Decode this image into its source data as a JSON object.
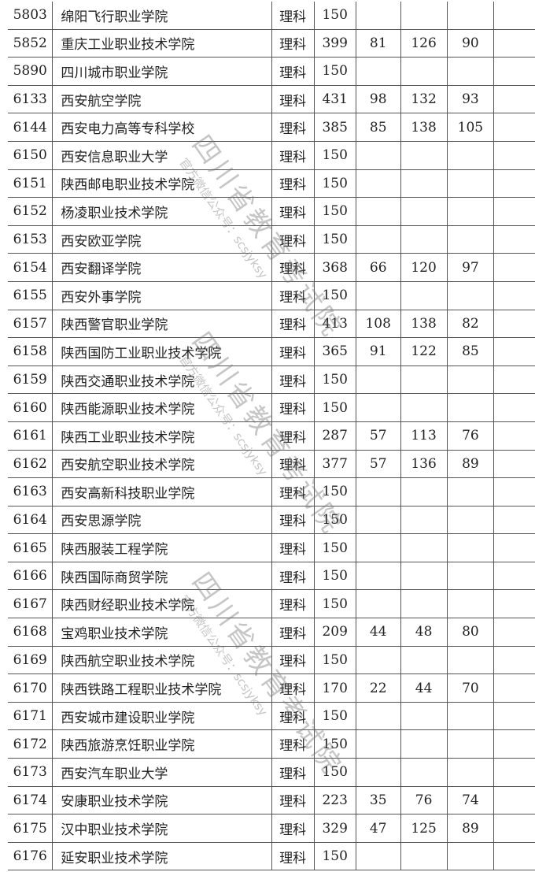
{
  "watermark": {
    "title": "四川省教育考试院",
    "subtitle": "官方微信公众号：scsjyksy"
  },
  "rows": [
    {
      "code": "5803",
      "name": "绵阳飞行职业学院",
      "subject": "理科",
      "plan": "150",
      "a": "",
      "b": "",
      "c": ""
    },
    {
      "code": "5852",
      "name": "重庆工业职业技术学院",
      "subject": "理科",
      "plan": "399",
      "a": "81",
      "b": "126",
      "c": "90"
    },
    {
      "code": "5890",
      "name": "四川城市职业学院",
      "subject": "理科",
      "plan": "150",
      "a": "",
      "b": "",
      "c": ""
    },
    {
      "code": "6133",
      "name": "西安航空学院",
      "subject": "理科",
      "plan": "431",
      "a": "98",
      "b": "132",
      "c": "93"
    },
    {
      "code": "6144",
      "name": "西安电力高等专科学校",
      "subject": "理科",
      "plan": "385",
      "a": "85",
      "b": "138",
      "c": "105"
    },
    {
      "code": "6150",
      "name": "西安信息职业大学",
      "subject": "理科",
      "plan": "150",
      "a": "",
      "b": "",
      "c": ""
    },
    {
      "code": "6151",
      "name": "陕西邮电职业技术学院",
      "subject": "理科",
      "plan": "150",
      "a": "",
      "b": "",
      "c": ""
    },
    {
      "code": "6152",
      "name": "杨凌职业技术学院",
      "subject": "理科",
      "plan": "150",
      "a": "",
      "b": "",
      "c": ""
    },
    {
      "code": "6153",
      "name": "西安欧亚学院",
      "subject": "理科",
      "plan": "150",
      "a": "",
      "b": "",
      "c": ""
    },
    {
      "code": "6154",
      "name": "西安翻译学院",
      "subject": "理科",
      "plan": "368",
      "a": "66",
      "b": "120",
      "c": "97"
    },
    {
      "code": "6155",
      "name": "西安外事学院",
      "subject": "理科",
      "plan": "150",
      "a": "",
      "b": "",
      "c": ""
    },
    {
      "code": "6157",
      "name": "陕西警官职业学院",
      "subject": "理科",
      "plan": "413",
      "a": "108",
      "b": "138",
      "c": "82"
    },
    {
      "code": "6158",
      "name": "陕西国防工业职业技术学院",
      "subject": "理科",
      "plan": "365",
      "a": "91",
      "b": "122",
      "c": "85"
    },
    {
      "code": "6159",
      "name": "陕西交通职业技术学院",
      "subject": "理科",
      "plan": "150",
      "a": "",
      "b": "",
      "c": ""
    },
    {
      "code": "6160",
      "name": "陕西能源职业技术学院",
      "subject": "理科",
      "plan": "150",
      "a": "",
      "b": "",
      "c": ""
    },
    {
      "code": "6161",
      "name": "陕西工业职业技术学院",
      "subject": "理科",
      "plan": "287",
      "a": "57",
      "b": "113",
      "c": "76"
    },
    {
      "code": "6162",
      "name": "西安航空职业技术学院",
      "subject": "理科",
      "plan": "377",
      "a": "57",
      "b": "136",
      "c": "89"
    },
    {
      "code": "6163",
      "name": "西安高新科技职业学院",
      "subject": "理科",
      "plan": "150",
      "a": "",
      "b": "",
      "c": ""
    },
    {
      "code": "6164",
      "name": "西安思源学院",
      "subject": "理科",
      "plan": "150",
      "a": "",
      "b": "",
      "c": ""
    },
    {
      "code": "6165",
      "name": "陕西服装工程学院",
      "subject": "理科",
      "plan": "150",
      "a": "",
      "b": "",
      "c": ""
    },
    {
      "code": "6166",
      "name": "陕西国际商贸学院",
      "subject": "理科",
      "plan": "150",
      "a": "",
      "b": "",
      "c": ""
    },
    {
      "code": "6167",
      "name": "陕西财经职业技术学院",
      "subject": "理科",
      "plan": "150",
      "a": "",
      "b": "",
      "c": ""
    },
    {
      "code": "6168",
      "name": "宝鸡职业技术学院",
      "subject": "理科",
      "plan": "209",
      "a": "44",
      "b": "48",
      "c": "80"
    },
    {
      "code": "6169",
      "name": "陕西航空职业技术学院",
      "subject": "理科",
      "plan": "150",
      "a": "",
      "b": "",
      "c": ""
    },
    {
      "code": "6170",
      "name": "陕西铁路工程职业技术学院",
      "subject": "理科",
      "plan": "170",
      "a": "22",
      "b": "44",
      "c": "70"
    },
    {
      "code": "6171",
      "name": "西安城市建设职业学院",
      "subject": "理科",
      "plan": "150",
      "a": "",
      "b": "",
      "c": ""
    },
    {
      "code": "6172",
      "name": "陕西旅游烹饪职业学院",
      "subject": "理科",
      "plan": "150",
      "a": "",
      "b": "",
      "c": ""
    },
    {
      "code": "6173",
      "name": "西安汽车职业大学",
      "subject": "理科",
      "plan": "150",
      "a": "",
      "b": "",
      "c": ""
    },
    {
      "code": "6174",
      "name": "安康职业技术学院",
      "subject": "理科",
      "plan": "223",
      "a": "35",
      "b": "76",
      "c": "74"
    },
    {
      "code": "6175",
      "name": "汉中职业技术学院",
      "subject": "理科",
      "plan": "329",
      "a": "47",
      "b": "125",
      "c": "89"
    },
    {
      "code": "6176",
      "name": "延安职业技术学院",
      "subject": "理科",
      "plan": "150",
      "a": "",
      "b": "",
      "c": ""
    }
  ]
}
